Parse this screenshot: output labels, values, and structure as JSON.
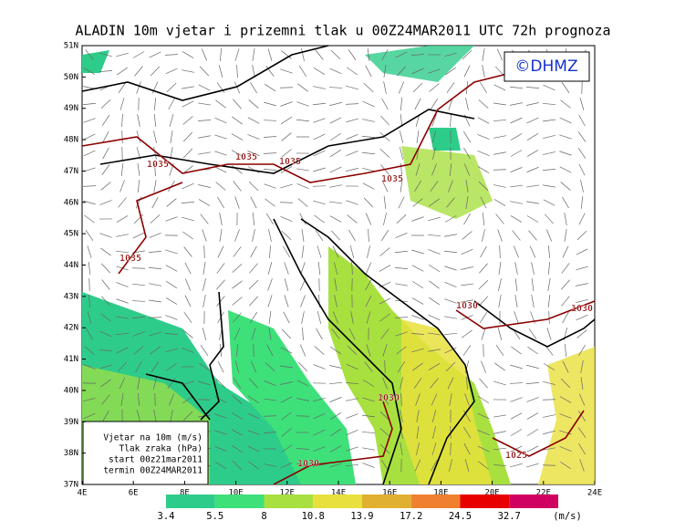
{
  "title": "ALADIN 10m vjetar i prizemni tlak u 00Z24MAR2011 UTC 72h prognoza",
  "copyright": "©DHMZ",
  "lat_labels": [
    "51N",
    "50N",
    "49N",
    "48N",
    "47N",
    "46N",
    "45N",
    "44N",
    "43N",
    "42N",
    "41N",
    "40N",
    "39N",
    "38N",
    "37N"
  ],
  "lon_labels": [
    "4E",
    "6E",
    "8E",
    "10E",
    "12E",
    "14E",
    "16E",
    "18E",
    "20E",
    "22E",
    "24E"
  ],
  "isobar_labels": [
    "1035",
    "1035",
    "1035",
    "1035",
    "1035",
    "1030",
    "1030",
    "1030",
    "1030",
    "1025"
  ],
  "info_box": [
    "Vjetar na 10m (m/s)",
    "Tlak zraka (hPa)",
    "start 00z21mar2011",
    "termin 00Z24MAR2011"
  ],
  "colorbar": {
    "labels": [
      "3.4",
      "5.5",
      "8",
      "10.8",
      "13.9",
      "17.2",
      "24.5",
      "32.7"
    ],
    "unit": "(m/s)",
    "colors": [
      "#2ecc8a",
      "#3ee07a",
      "#a8e040",
      "#e8e03c",
      "#e0b030",
      "#f08030",
      "#e80000",
      "#d00060",
      "#a000c8"
    ]
  }
}
